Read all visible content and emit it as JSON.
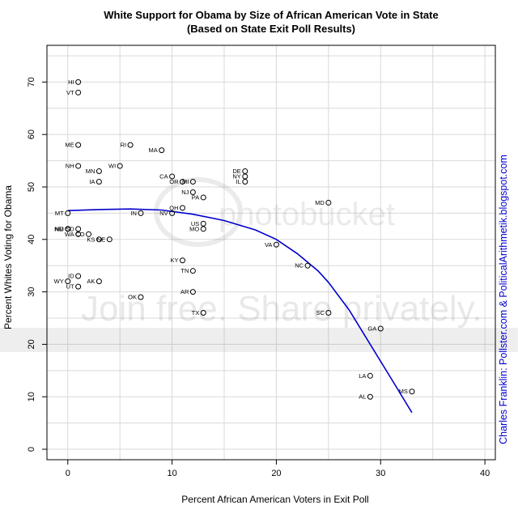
{
  "chart_data": {
    "type": "scatter",
    "title": "White Support for Obama by Size of African American Vote in State",
    "subtitle": "(Based on State Exit Poll Results)",
    "xlabel": "Percent African American Voters in Exit Poll",
    "ylabel": "Percent Whites Voting for Obama",
    "xlim": [
      -2,
      41
    ],
    "ylim": [
      -2,
      77
    ],
    "x_ticks": [
      0,
      10,
      20,
      30,
      40
    ],
    "y_ticks": [
      0,
      10,
      20,
      30,
      40,
      50,
      60,
      70
    ],
    "grid": true,
    "points": [
      {
        "label": "HI",
        "x": 1,
        "y": 70
      },
      {
        "label": "VT",
        "x": 1,
        "y": 68
      },
      {
        "label": "ME",
        "x": 1,
        "y": 58
      },
      {
        "label": "RI",
        "x": 6,
        "y": 58
      },
      {
        "label": "MA",
        "x": 9,
        "y": 57
      },
      {
        "label": "NH",
        "x": 1,
        "y": 54
      },
      {
        "label": "WI",
        "x": 5,
        "y": 54
      },
      {
        "label": "MN",
        "x": 3,
        "y": 53
      },
      {
        "label": "IA",
        "x": 3,
        "y": 51
      },
      {
        "label": "CA",
        "x": 10,
        "y": 52
      },
      {
        "label": "OR",
        "x": 11,
        "y": 51
      },
      {
        "label": "MI",
        "x": 12,
        "y": 51
      },
      {
        "label": "DE",
        "x": 17,
        "y": 53
      },
      {
        "label": "NY",
        "x": 17,
        "y": 52
      },
      {
        "label": "IL",
        "x": 17,
        "y": 51
      },
      {
        "label": "NJ",
        "x": 12,
        "y": 49
      },
      {
        "label": "PA",
        "x": 13,
        "y": 48
      },
      {
        "label": "MD",
        "x": 25,
        "y": 47
      },
      {
        "label": "OH",
        "x": 11,
        "y": 46
      },
      {
        "label": "MT",
        "x": 0,
        "y": 45
      },
      {
        "label": "IN",
        "x": 7,
        "y": 45
      },
      {
        "label": "NV",
        "x": 10,
        "y": 45
      },
      {
        "label": "US",
        "x": 13,
        "y": 43
      },
      {
        "label": "MO",
        "x": 13,
        "y": 42
      },
      {
        "label": "ND",
        "x": 0,
        "y": 42
      },
      {
        "label": "NM",
        "x": 0,
        "y": 42
      },
      {
        "label": "SD",
        "x": 1,
        "y": 42
      },
      {
        "label": "WA",
        "x": 1,
        "y": 41
      },
      {
        "label": "CO",
        "x": 2,
        "y": 41
      },
      {
        "label": "KS",
        "x": 3,
        "y": 40
      },
      {
        "label": "NE",
        "x": 4,
        "y": 40
      },
      {
        "label": "VA",
        "x": 20,
        "y": 39
      },
      {
        "label": "KY",
        "x": 11,
        "y": 36
      },
      {
        "label": "NC",
        "x": 23,
        "y": 35
      },
      {
        "label": "TN",
        "x": 12,
        "y": 34
      },
      {
        "label": "ID",
        "x": 1,
        "y": 33
      },
      {
        "label": "AK",
        "x": 3,
        "y": 32
      },
      {
        "label": "WY",
        "x": 0,
        "y": 32
      },
      {
        "label": "UT",
        "x": 1,
        "y": 31
      },
      {
        "label": "AR",
        "x": 12,
        "y": 30
      },
      {
        "label": "OK",
        "x": 7,
        "y": 29
      },
      {
        "label": "TX",
        "x": 13,
        "y": 26
      },
      {
        "label": "SC",
        "x": 25,
        "y": 26
      },
      {
        "label": "GA",
        "x": 30,
        "y": 23
      },
      {
        "label": "LA",
        "x": 29,
        "y": 14
      },
      {
        "label": "MS",
        "x": 33,
        "y": 11
      },
      {
        "label": "AL",
        "x": 29,
        "y": 10
      }
    ],
    "trend_line": {
      "color": "#0000cc",
      "points": [
        {
          "x": 0,
          "y": 45.5
        },
        {
          "x": 3,
          "y": 45.7
        },
        {
          "x": 6,
          "y": 45.8
        },
        {
          "x": 9,
          "y": 45.6
        },
        {
          "x": 12,
          "y": 44.8
        },
        {
          "x": 15,
          "y": 43.6
        },
        {
          "x": 18,
          "y": 41.8
        },
        {
          "x": 20,
          "y": 40.0
        },
        {
          "x": 22,
          "y": 37.3
        },
        {
          "x": 24,
          "y": 34.0
        },
        {
          "x": 25,
          "y": 31.8
        },
        {
          "x": 27,
          "y": 26.5
        },
        {
          "x": 29,
          "y": 20.0
        },
        {
          "x": 31,
          "y": 13.5
        },
        {
          "x": 33,
          "y": 7.0
        }
      ]
    },
    "credit": "Charles Franklin:  Pollster.com & PoliticalArithmetik.blogspot.com",
    "credit_color": "#0000cc",
    "watermark_text": "Join free. Share privately."
  }
}
